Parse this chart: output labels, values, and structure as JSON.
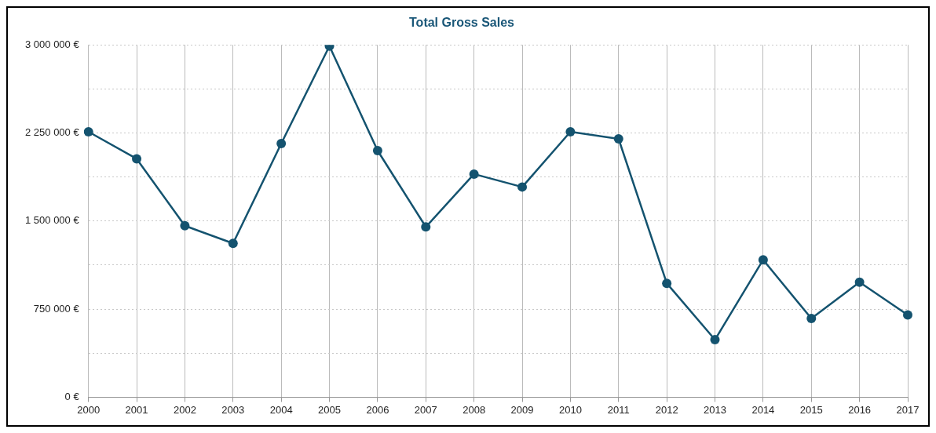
{
  "chart_data": {
    "type": "line",
    "title": "Total Gross Sales",
    "categories": [
      "2000",
      "2001",
      "2002",
      "2003",
      "2004",
      "2005",
      "2006",
      "2007",
      "2008",
      "2009",
      "2010",
      "2011",
      "2012",
      "2013",
      "2014",
      "2015",
      "2016",
      "2017"
    ],
    "series": [
      {
        "color": "#14536f",
        "values": [
          2260000,
          2030000,
          1460000,
          1310000,
          2160000,
          2990000,
          2100000,
          1450000,
          1900000,
          1790000,
          2260000,
          2200000,
          970000,
          490000,
          1170000,
          670000,
          980000,
          700000
        ]
      }
    ],
    "ylim": [
      0,
      3000000
    ],
    "yticks": [
      {
        "value": 0,
        "label": "0 €"
      },
      {
        "value": 375000,
        "label": null
      },
      {
        "value": 750000,
        "label": "750 000 €"
      },
      {
        "value": 1125000,
        "label": null
      },
      {
        "value": 1500000,
        "label": "1 500 000 €"
      },
      {
        "value": 1875000,
        "label": null
      },
      {
        "value": 2250000,
        "label": "2 250 000 €"
      },
      {
        "value": 2625000,
        "label": null
      },
      {
        "value": 3000000,
        "label": "3 000 000 €"
      }
    ],
    "grid": true,
    "marker": "circle",
    "line_style": "solid",
    "legend": false
  }
}
